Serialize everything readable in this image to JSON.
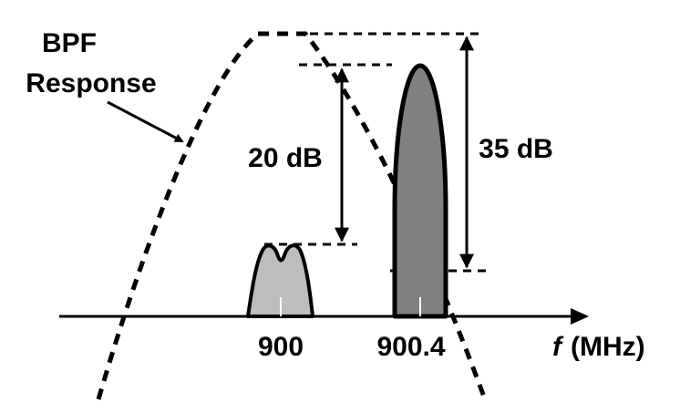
{
  "labels": {
    "bpf_line1": "BPF",
    "bpf_line2": "Response",
    "gap_small": "20 dB",
    "gap_large": "35 dB",
    "tick_left": "900",
    "tick_right": "900.4",
    "axis_var": "f",
    "axis_unit": "(MHz)"
  },
  "colors": {
    "stroke": "#000000",
    "small_signal_fill": "#bdbdbd",
    "large_signal_fill": "#808080",
    "background": "#ffffff"
  }
}
